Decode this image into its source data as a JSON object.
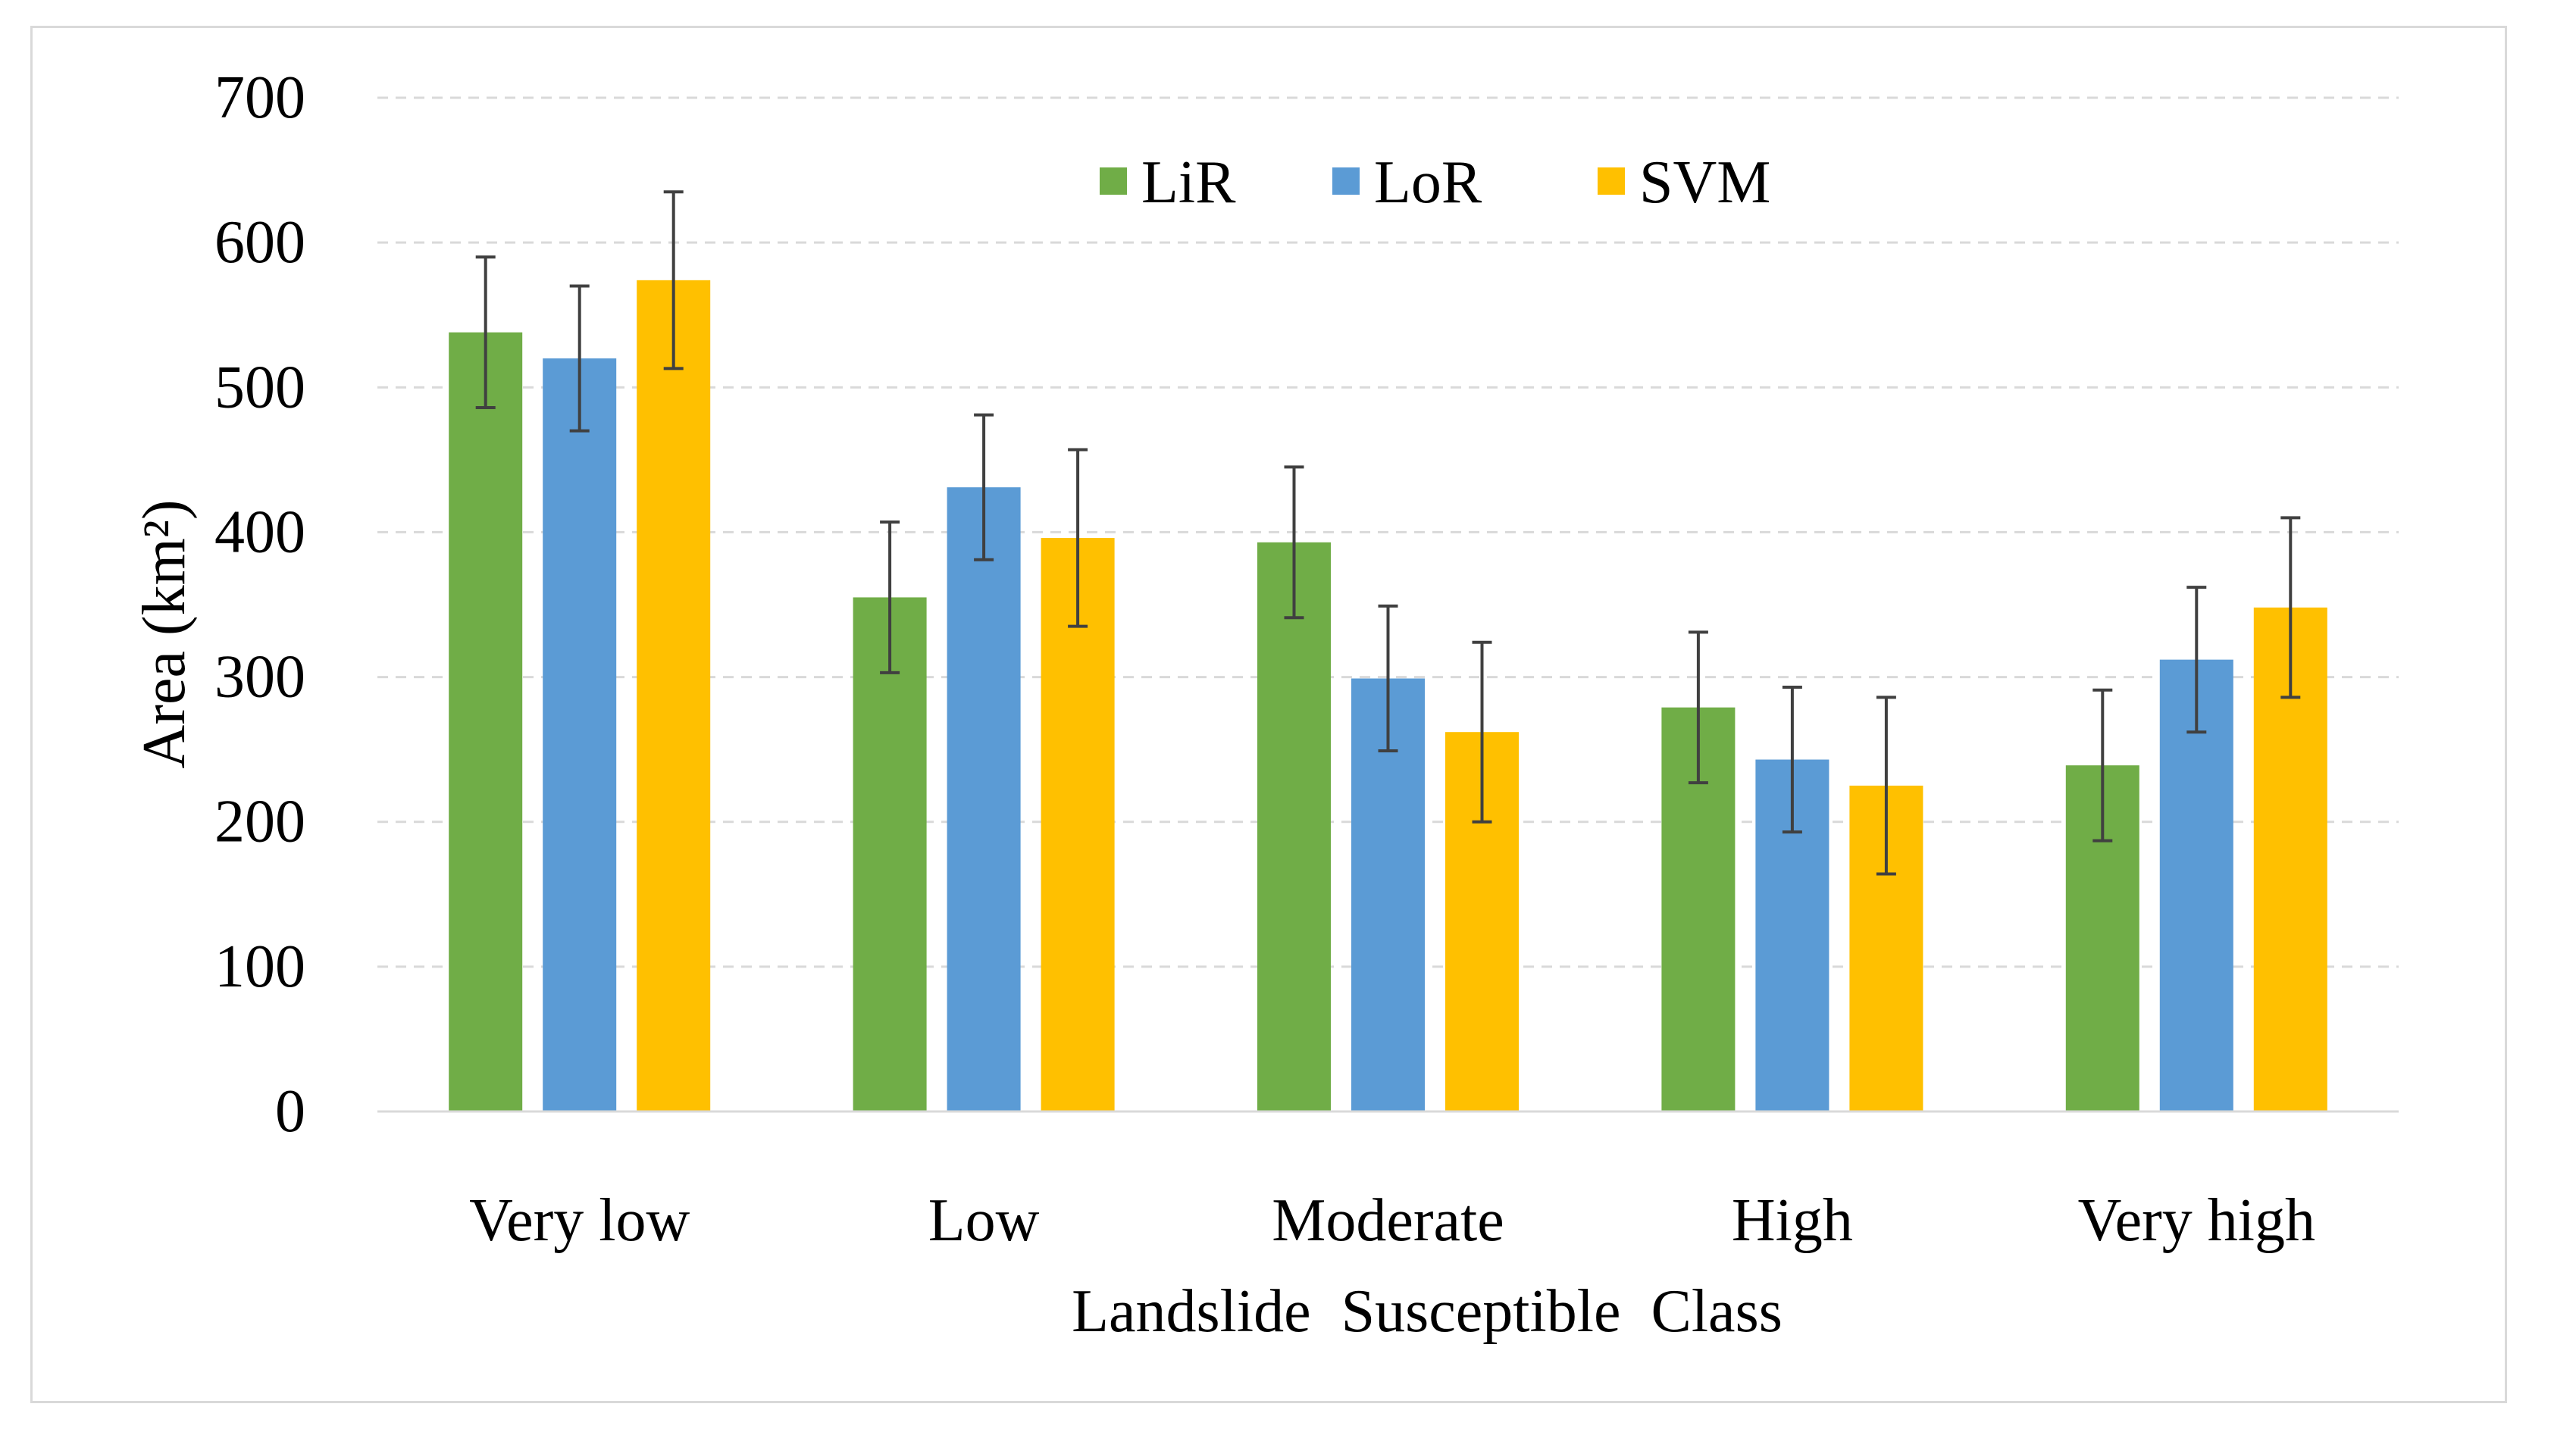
{
  "chart_data": {
    "type": "bar",
    "categories": [
      "Very low",
      "Low",
      "Moderate",
      "High",
      "Very high"
    ],
    "series": [
      {
        "name": "LiR",
        "color": "#70ad47",
        "values": [
          538,
          355,
          393,
          279,
          239
        ],
        "errors": [
          52,
          52,
          52,
          52,
          52
        ]
      },
      {
        "name": "LoR",
        "color": "#5b9bd5",
        "values": [
          520,
          431,
          299,
          243,
          312
        ],
        "errors": [
          50,
          50,
          50,
          50,
          50
        ]
      },
      {
        "name": "SVM",
        "color": "#ffc000",
        "values": [
          574,
          396,
          262,
          225,
          348
        ],
        "errors": [
          61,
          61,
          62,
          61,
          62
        ]
      }
    ],
    "xlabel": "Landslide  Susceptible  Class",
    "ylabel": "Area (km²)",
    "ylim": [
      0,
      700
    ],
    "yticks": [
      0,
      100,
      200,
      300,
      400,
      500,
      600,
      700
    ],
    "grid": true,
    "legend_position": "top-center"
  }
}
